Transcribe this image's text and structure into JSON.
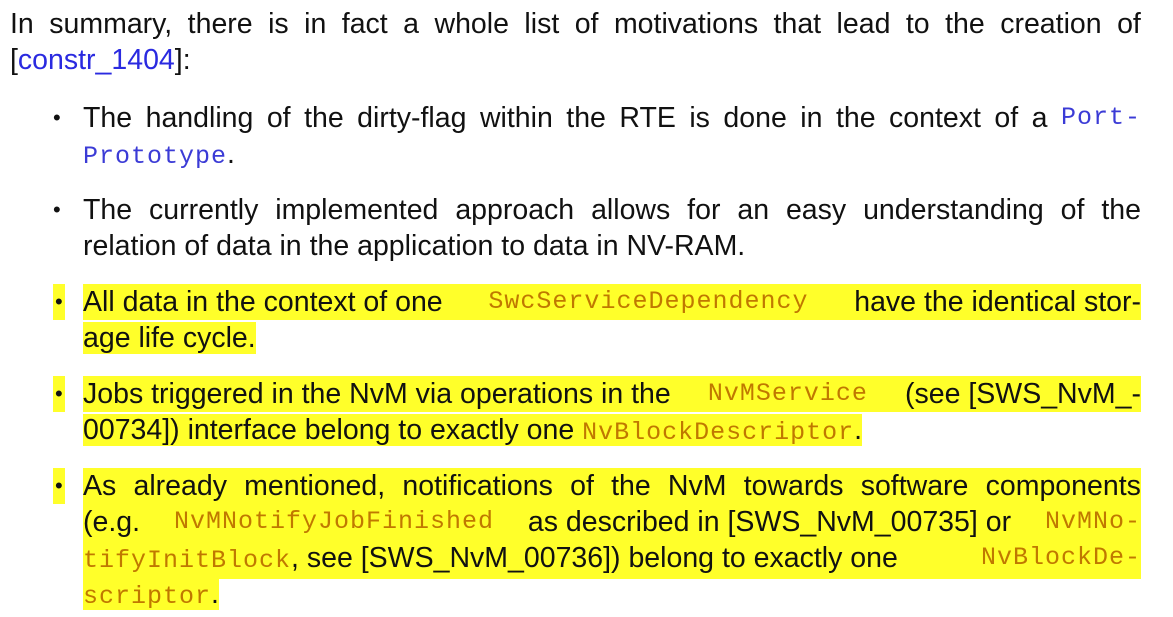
{
  "intro": {
    "line1": [
      "In",
      "summary,",
      "there",
      "is",
      "in",
      "fact",
      "a",
      "whole",
      "list",
      "of",
      "motivations",
      "that",
      "lead",
      "to",
      "the",
      "creation",
      "of"
    ],
    "link_open": "[",
    "link_text": "constr_1404",
    "link_close": "]:"
  },
  "bullet_glyph": "•",
  "items": [
    {
      "line1": [
        "The",
        "handling",
        "of",
        "the",
        "dirty-flag",
        "within",
        "the",
        "RTE",
        "is",
        "done",
        "in",
        "the",
        "context",
        "of",
        "a"
      ],
      "code1": "Port-",
      "code2": "Prototype",
      "end": "."
    },
    {
      "line1": [
        "The",
        "currently",
        "implemented",
        "approach",
        "allows",
        "for",
        "an",
        "easy",
        "understanding",
        "of",
        "the"
      ],
      "line2": "relation of data in the application to data in NV-RAM."
    },
    {
      "pre": "All data in the context of one",
      "code": "SwcServiceDependency",
      "post": "have the identical stor-",
      "line2": "age life cycle."
    },
    {
      "pre": "Jobs triggered in the NvM via operations in the",
      "code": "NvMService",
      "post": "(see [SWS_NvM_-",
      "line2_pre": "00734]) interface belong to exactly one",
      "line2_code": "NvBlockDescriptor",
      "line2_end": "."
    },
    {
      "line1": [
        "As",
        "already",
        "mentioned,",
        "notifications",
        "of",
        "the",
        "NvM",
        "towards",
        "software",
        "components"
      ],
      "line2_pre": "(e.g.",
      "line2_code1": "NvMNotifyJobFinished",
      "line2_mid": "as described in [SWS_NvM_00735] or",
      "line2_code2": "NvMNo-",
      "line3_code": "tifyInitBlock",
      "line3_mid": ", see [SWS_NvM_00736]) belong to exactly one",
      "line3_code2": "NvBlockDe-",
      "line4_code": "scriptor",
      "line4_end": "."
    }
  ]
}
